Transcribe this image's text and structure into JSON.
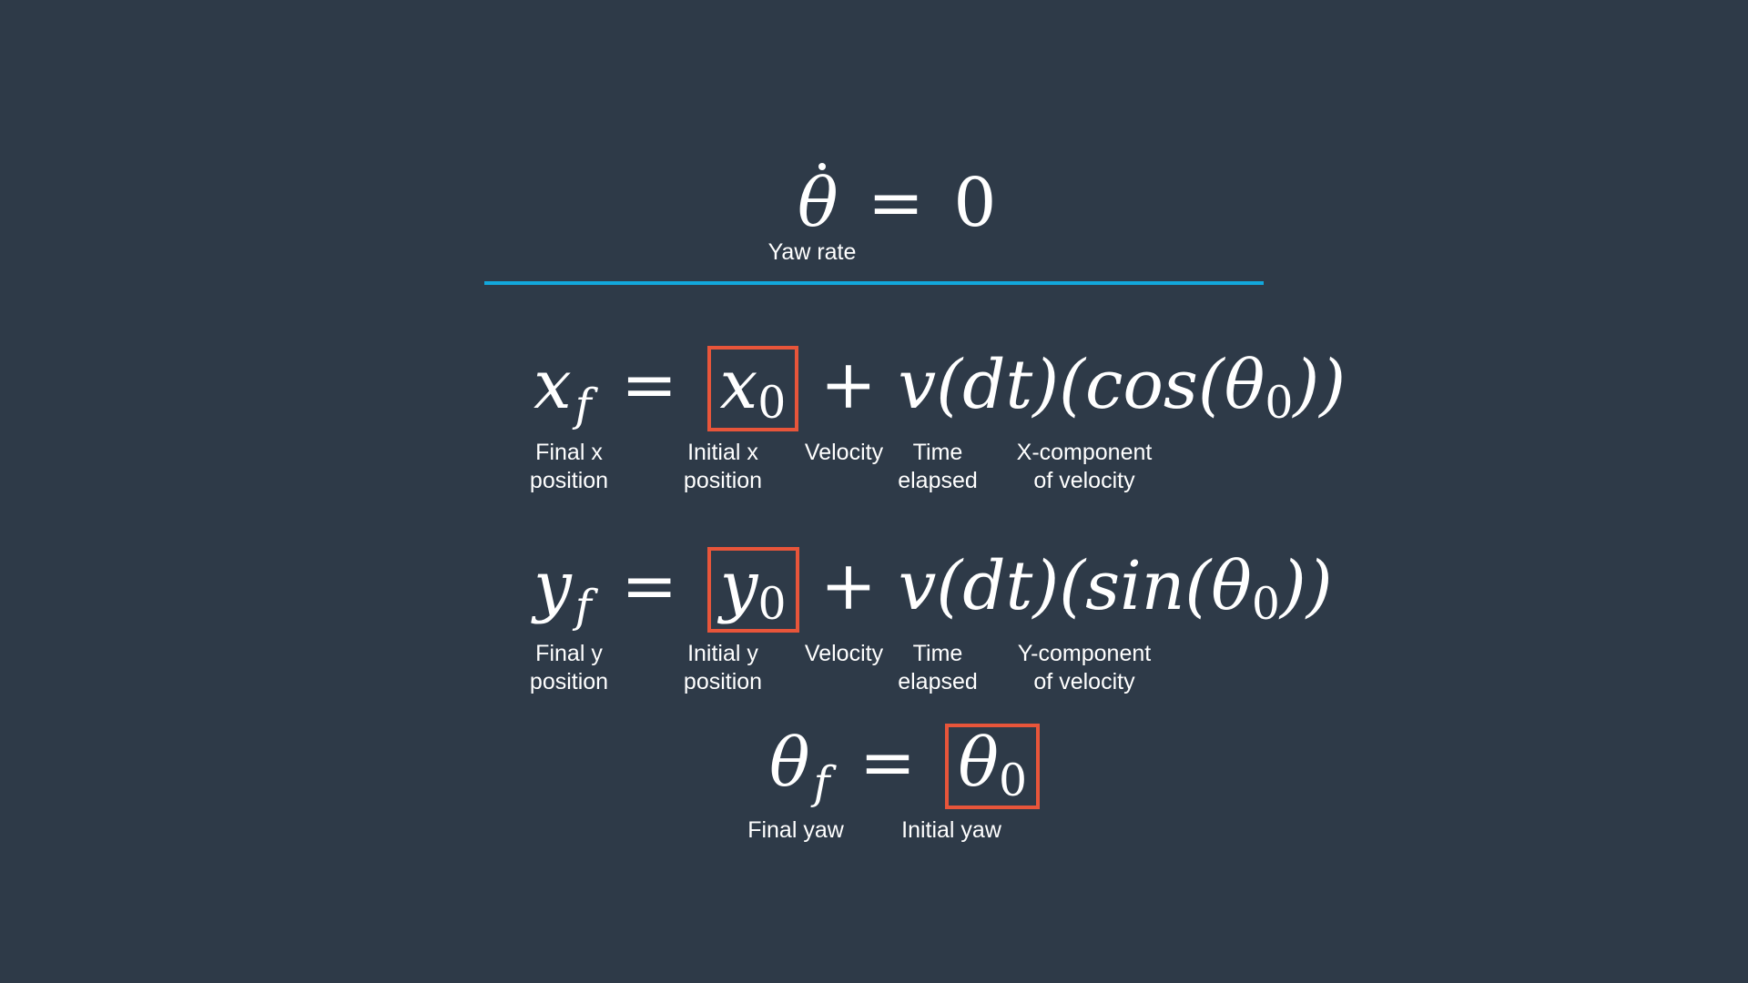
{
  "yaw_rate": {
    "symbol": "θ",
    "eq": "=",
    "value": "0",
    "label": "Yaw rate"
  },
  "x_equation": {
    "lhs": "x",
    "lhs_sub": "f",
    "eq": "=",
    "initial": "x",
    "initial_sub": "0",
    "rest_a": "+ v(dt)(cos(θ",
    "rest_sub": "0",
    "rest_b": "))",
    "labels": {
      "final_line1": "Final x",
      "final_line2": "position",
      "initial_line1": "Initial x",
      "initial_line2": "position",
      "velocity": "Velocity",
      "time_line1": "Time",
      "time_line2": "elapsed",
      "component_line1": "X-component",
      "component_line2": "of velocity"
    }
  },
  "y_equation": {
    "lhs": "y",
    "lhs_sub": "f",
    "eq": "=",
    "initial": "y",
    "initial_sub": "0",
    "rest_a": "+ v(dt)(sin(θ",
    "rest_sub": "0",
    "rest_b": "))",
    "labels": {
      "final_line1": "Final y",
      "final_line2": "position",
      "initial_line1": "Initial y",
      "initial_line2": "position",
      "velocity": "Velocity",
      "time_line1": "Time",
      "time_line2": "elapsed",
      "component_line1": "Y-component",
      "component_line2": "of velocity"
    }
  },
  "theta_equation": {
    "lhs": "θ",
    "lhs_sub": "f",
    "eq": "=",
    "initial": "θ",
    "initial_sub": "0",
    "labels": {
      "final": "Final yaw",
      "initial": "Initial yaw"
    }
  },
  "colors": {
    "background": "#2e3a48",
    "divider": "#12a7dc",
    "highlight_box": "#e8553a",
    "text": "#ffffff"
  }
}
